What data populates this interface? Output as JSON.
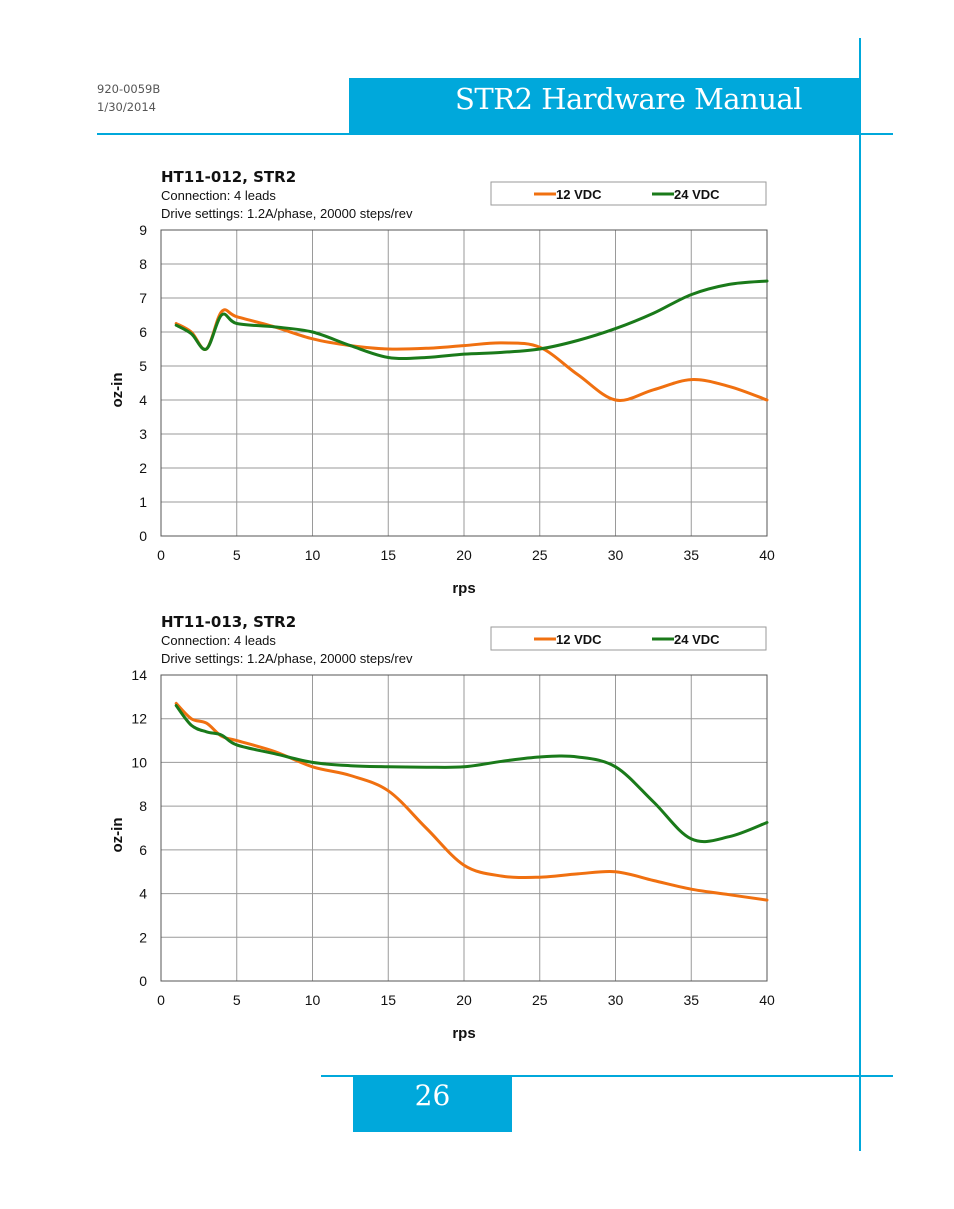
{
  "header": {
    "doc_number": "920-0059B",
    "date": "1/30/2014",
    "title": "STR2 Hardware Manual"
  },
  "footer": {
    "page_number": "26"
  },
  "colors": {
    "accent": "#00A8DB",
    "series_12v": "#F07010",
    "series_24v": "#1A7A1A",
    "grid": "#999999"
  },
  "chart_data": [
    {
      "type": "line",
      "title": "HT11-012, STR2",
      "subtitle_lines": [
        "Connection: 4 leads",
        "Drive settings: 1.2A/phase, 20000 steps/rev"
      ],
      "xlabel": "rps",
      "ylabel": "oz-in",
      "xlim": [
        0,
        40
      ],
      "ylim": [
        0,
        9
      ],
      "xticks": [
        0,
        5,
        10,
        15,
        20,
        25,
        30,
        35,
        40
      ],
      "yticks": [
        0,
        1,
        2,
        3,
        4,
        5,
        6,
        7,
        8,
        9
      ],
      "grid": true,
      "legend_position": "top-right",
      "series": [
        {
          "name": "12 VDC",
          "color": "#F07010",
          "x": [
            1,
            2,
            3,
            4,
            5,
            7.5,
            10,
            12.5,
            15,
            17.5,
            20,
            22.5,
            25,
            27.5,
            30,
            32.5,
            35,
            37.5,
            40
          ],
          "y": [
            6.25,
            6.0,
            5.5,
            6.6,
            6.45,
            6.15,
            5.8,
            5.6,
            5.5,
            5.52,
            5.6,
            5.68,
            5.55,
            4.75,
            4.0,
            4.3,
            4.6,
            4.4,
            4.0
          ]
        },
        {
          "name": "24 VDC",
          "color": "#1A7A1A",
          "x": [
            1,
            2,
            3,
            4,
            5,
            7.5,
            10,
            12.5,
            15,
            17.5,
            20,
            22.5,
            25,
            27.5,
            30,
            32.5,
            35,
            37.5,
            40
          ],
          "y": [
            6.2,
            5.95,
            5.5,
            6.5,
            6.25,
            6.15,
            6.0,
            5.6,
            5.25,
            5.25,
            5.35,
            5.4,
            5.5,
            5.75,
            6.1,
            6.55,
            7.1,
            7.4,
            7.5
          ]
        }
      ]
    },
    {
      "type": "line",
      "title": "HT11-013, STR2",
      "subtitle_lines": [
        "Connection: 4 leads",
        "Drive settings: 1.2A/phase, 20000 steps/rev"
      ],
      "xlabel": "rps",
      "ylabel": "oz-in",
      "xlim": [
        0,
        40
      ],
      "ylim": [
        0,
        14
      ],
      "xticks": [
        0,
        5,
        10,
        15,
        20,
        25,
        30,
        35,
        40
      ],
      "yticks": [
        0,
        2,
        4,
        6,
        8,
        10,
        12,
        14
      ],
      "grid": true,
      "legend_position": "top-right",
      "series": [
        {
          "name": "12 VDC",
          "color": "#F07010",
          "x": [
            1,
            2,
            3,
            4,
            5,
            7.5,
            10,
            12.5,
            15,
            17.5,
            20,
            22.5,
            25,
            27.5,
            30,
            32.5,
            35,
            37.5,
            40
          ],
          "y": [
            12.7,
            12.0,
            11.8,
            11.2,
            11.0,
            10.5,
            9.8,
            9.4,
            8.7,
            7.0,
            5.3,
            4.8,
            4.75,
            4.9,
            5.0,
            4.6,
            4.2,
            3.95,
            3.7
          ]
        },
        {
          "name": "24 VDC",
          "color": "#1A7A1A",
          "x": [
            1,
            2,
            3,
            4,
            5,
            7.5,
            10,
            12.5,
            15,
            17.5,
            20,
            22.5,
            25,
            27.5,
            30,
            32.5,
            35,
            37.5,
            40
          ],
          "y": [
            12.6,
            11.7,
            11.4,
            11.25,
            10.8,
            10.4,
            10.0,
            9.85,
            9.8,
            9.78,
            9.8,
            10.05,
            10.25,
            10.25,
            9.8,
            8.2,
            6.5,
            6.6,
            7.25
          ]
        }
      ]
    }
  ]
}
